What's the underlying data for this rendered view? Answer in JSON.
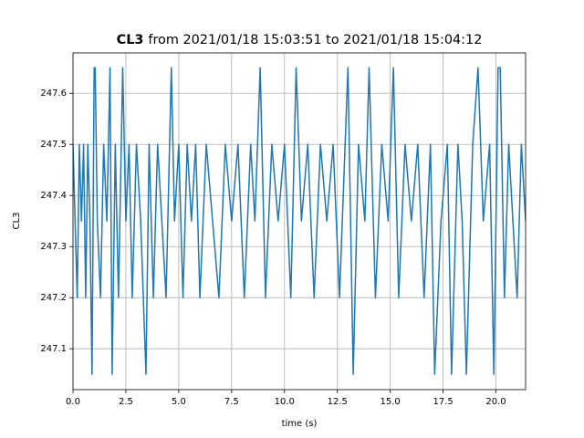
{
  "chart_data": {
    "type": "line",
    "title": [
      "CL3",
      "from 2021/01/18 15:03:51 to 2021/01/18 15:04:12"
    ],
    "xlabel": "time (s)",
    "ylabel": "CL3",
    "xlim": [
      0,
      21.4
    ],
    "ylim": [
      247.02,
      247.679
    ],
    "xticks": [
      {
        "value": 0,
        "label": "0.0"
      },
      2.5,
      {
        "value": 5,
        "label": "5.0"
      },
      7.5,
      {
        "value": 10,
        "label": "10.0"
      },
      12.5,
      {
        "value": 15,
        "label": "15.0"
      },
      17.5,
      {
        "value": 20,
        "label": "20.0"
      }
    ],
    "yticks": [
      247.1,
      247.2,
      247.3,
      247.4,
      247.5,
      247.6
    ],
    "grid": true,
    "x": [
      0,
      0.1,
      0.2,
      0.3,
      0.4,
      0.5,
      0.6,
      0.7,
      0.8,
      0.9,
      1.0,
      1.05,
      1.15,
      1.3,
      1.45,
      1.6,
      1.75,
      1.85,
      2.0,
      2.15,
      2.35,
      2.5,
      2.65,
      2.8,
      3.0,
      3.2,
      3.45,
      3.6,
      3.8,
      4.0,
      4.2,
      4.4,
      4.65,
      4.8,
      5.0,
      5.2,
      5.4,
      5.6,
      5.8,
      6.0,
      6.3,
      6.6,
      6.9,
      7.2,
      7.5,
      7.8,
      8.1,
      8.4,
      8.6,
      8.85,
      9.1,
      9.4,
      9.7,
      10.0,
      10.3,
      10.55,
      10.8,
      11.1,
      11.4,
      11.7,
      12.0,
      12.3,
      12.6,
      13.0,
      13.25,
      13.5,
      13.8,
      14.0,
      14.3,
      14.6,
      14.9,
      15.15,
      15.4,
      15.7,
      16.0,
      16.3,
      16.6,
      16.9,
      17.1,
      17.4,
      17.7,
      17.9,
      18.2,
      18.4,
      18.6,
      18.9,
      19.15,
      19.4,
      19.7,
      19.9,
      20.1,
      20.2,
      20.4,
      20.6,
      20.8,
      21.0,
      21.2,
      21.4
    ],
    "series": [
      {
        "name": "CL3",
        "color": "#1f77b4",
        "values": [
          247.5,
          247.35,
          247.2,
          247.5,
          247.35,
          247.5,
          247.2,
          247.5,
          247.35,
          247.05,
          247.65,
          247.65,
          247.35,
          247.2,
          247.5,
          247.35,
          247.65,
          247.05,
          247.5,
          247.2,
          247.65,
          247.35,
          247.5,
          247.2,
          247.5,
          247.35,
          247.05,
          247.5,
          247.2,
          247.5,
          247.35,
          247.2,
          247.65,
          247.35,
          247.5,
          247.2,
          247.5,
          247.35,
          247.5,
          247.2,
          247.5,
          247.35,
          247.2,
          247.5,
          247.35,
          247.5,
          247.2,
          247.5,
          247.35,
          247.65,
          247.2,
          247.5,
          247.35,
          247.5,
          247.2,
          247.65,
          247.35,
          247.5,
          247.2,
          247.5,
          247.35,
          247.5,
          247.2,
          247.65,
          247.05,
          247.5,
          247.35,
          247.65,
          247.2,
          247.5,
          247.35,
          247.65,
          247.2,
          247.5,
          247.35,
          247.5,
          247.2,
          247.5,
          247.05,
          247.35,
          247.5,
          247.05,
          247.5,
          247.35,
          247.05,
          247.5,
          247.65,
          247.35,
          247.5,
          247.05,
          247.65,
          247.65,
          247.2,
          247.5,
          247.35,
          247.2,
          247.5,
          247.35
        ]
      }
    ]
  }
}
